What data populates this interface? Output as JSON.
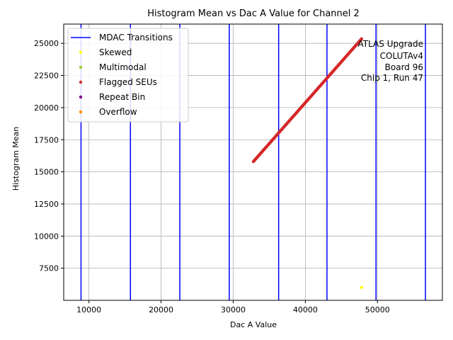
{
  "chart_data": {
    "type": "scatter",
    "title": "Histogram Mean vs Dac A Value for Channel 2",
    "xlabel": "Dac A Value",
    "ylabel": "Histogram Mean",
    "xlim": [
      6500,
      59000
    ],
    "ylim": [
      5000,
      26500
    ],
    "xticks": [
      10000,
      20000,
      30000,
      40000,
      50000
    ],
    "yticks": [
      7500,
      10000,
      12500,
      15000,
      17500,
      20000,
      22500,
      25000
    ],
    "grid": true,
    "legend_position": "upper-left",
    "annotation": [
      "ATLAS Upgrade",
      "COLUTAv4",
      "Board 96",
      "Chip 1, Run 47"
    ],
    "mdac_transitions": {
      "name": "MDAC Transitions",
      "color": "#0000ff",
      "x": [
        8900,
        15750,
        22600,
        29450,
        36300,
        43000,
        49800,
        56650
      ]
    },
    "series": [
      {
        "name": "Skewed",
        "color": "#ffff00",
        "points": [
          [
            47800,
            6000
          ]
        ]
      },
      {
        "name": "Multimodal",
        "color": "#9acd32",
        "points": []
      },
      {
        "name": "Flagged SEUs",
        "color": "#d62728",
        "line_from": [
          32800,
          15800
        ],
        "line_to": [
          47800,
          25350
        ]
      },
      {
        "name": "Repeat Bin",
        "color": "#800080",
        "points": []
      },
      {
        "name": "Overflow",
        "color": "#ff8c00",
        "points": []
      }
    ]
  }
}
